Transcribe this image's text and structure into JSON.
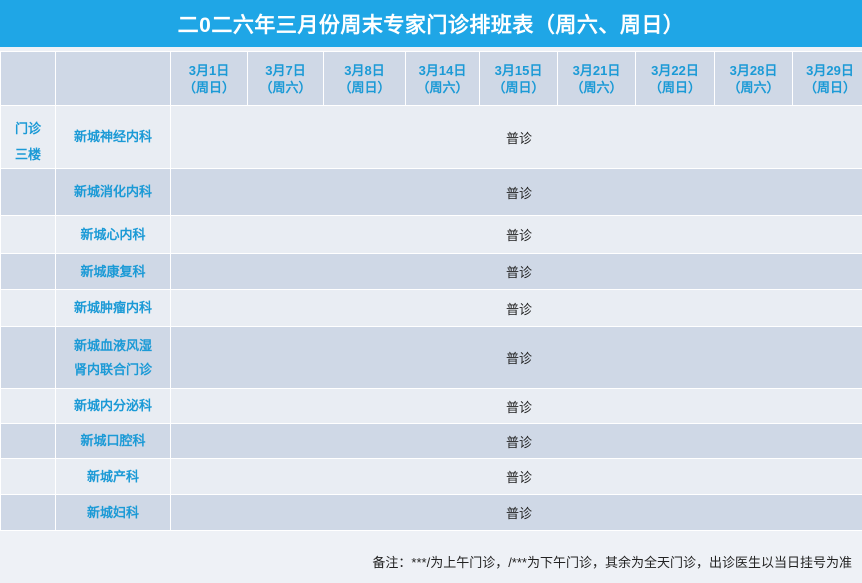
{
  "title": "二0二六年三月份周末专家门诊排班表（周六、周日）",
  "dates": [
    {
      "date": "3月1日",
      "day": "（周日）"
    },
    {
      "date": "3月7日",
      "day": "（周六）"
    },
    {
      "date": "3月8日",
      "day": "（周日）"
    },
    {
      "date": "3月14日",
      "day": "（周六）"
    },
    {
      "date": "3月15日",
      "day": "（周日）"
    },
    {
      "date": "3月21日",
      "day": "（周六）"
    },
    {
      "date": "3月22日",
      "day": "（周日）"
    },
    {
      "date": "3月28日",
      "day": "（周六）"
    },
    {
      "date": "3月29日",
      "day": "（周日）"
    }
  ],
  "floor": {
    "line1": "门诊",
    "line2": "三楼"
  },
  "rows": [
    {
      "dept": "新城神经内科",
      "mark": "普诊"
    },
    {
      "dept": "新城消化内科",
      "mark": "普诊"
    },
    {
      "dept": "新城心内科",
      "mark": "普诊"
    },
    {
      "dept": "新城康复科",
      "mark": "普诊"
    },
    {
      "dept": "新城肿瘤内科",
      "mark": "普诊"
    },
    {
      "dept": "新城血液风湿肾内联合门诊",
      "dept_line1": "新城血液风湿",
      "dept_line2": "肾内联合门诊",
      "mark": "普诊"
    },
    {
      "dept": "新城内分泌科",
      "mark": "普诊"
    },
    {
      "dept": "新城口腔科",
      "mark": "普诊"
    },
    {
      "dept": "新城产科",
      "mark": "普诊"
    },
    {
      "dept": "新城妇科",
      "mark": "普诊"
    }
  ],
  "footer_note": "备注：***/为上午门诊，/***为下午门诊，其余为全天门诊，出诊医生以当日挂号为准"
}
